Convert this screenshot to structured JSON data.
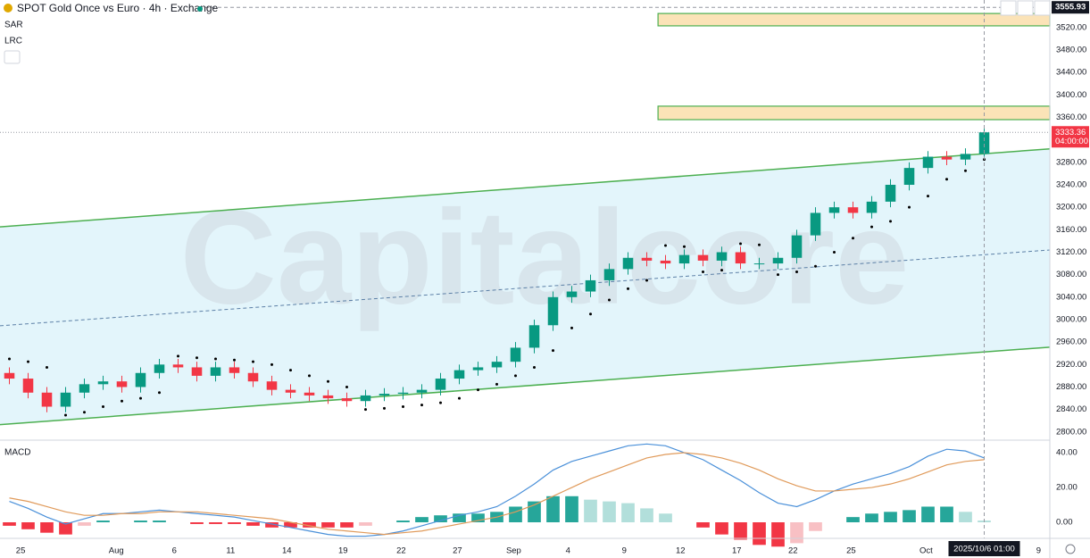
{
  "chart_data": [
    {
      "type": "candlestick",
      "title": "SPOT Gold Once vs Euro · 4h · Exchange",
      "indicators": [
        "SAR",
        "LRC"
      ],
      "watermark": "Capitalcore",
      "x": [
        0.5,
        1.5,
        2.5,
        3.5,
        4.5,
        5.5,
        6.5,
        7.5,
        8.5,
        9.5,
        10.5,
        11.5,
        12.5,
        13.5,
        14.5,
        15.5,
        16.5,
        17.5,
        18.5,
        19.5,
        20.5,
        21.5,
        22.5,
        23.5,
        24.5,
        25.5,
        26.5,
        27.5,
        28.5,
        29.5,
        30.5,
        31.5,
        32.5,
        33.5,
        34.5,
        35.5,
        36.5,
        37.5,
        38.5,
        39.5,
        40.5,
        41.5,
        42.5,
        43.5,
        44.5,
        45.5,
        46.5,
        47.5,
        48.5,
        49.5,
        50.5,
        51.5,
        52.5
      ],
      "open": [
        2905,
        2895,
        2870,
        2845,
        2870,
        2885,
        2890,
        2880,
        2905,
        2920,
        2915,
        2900,
        2915,
        2905,
        2890,
        2875,
        2870,
        2865,
        2860,
        2855,
        2865,
        2868,
        2870,
        2875,
        2895,
        2910,
        2915,
        2925,
        2950,
        2990,
        3040,
        3050,
        3070,
        3090,
        3110,
        3105,
        3100,
        3115,
        3105,
        3120,
        3100,
        3100,
        3110,
        3150,
        3190,
        3200,
        3190,
        3210,
        3240,
        3270,
        3290,
        3285,
        3295
      ],
      "high": [
        2915,
        2905,
        2880,
        2880,
        2895,
        2900,
        2900,
        2915,
        2930,
        2930,
        2925,
        2925,
        2925,
        2915,
        2900,
        2885,
        2880,
        2875,
        2870,
        2875,
        2878,
        2880,
        2885,
        2905,
        2920,
        2925,
        2935,
        2960,
        3000,
        3050,
        3060,
        3080,
        3100,
        3120,
        3120,
        3115,
        3125,
        3125,
        3130,
        3130,
        3110,
        3120,
        3160,
        3200,
        3210,
        3210,
        3220,
        3250,
        3280,
        3300,
        3300,
        3305,
        3340
      ],
      "low": [
        2885,
        2860,
        2835,
        2835,
        2860,
        2875,
        2870,
        2870,
        2895,
        2905,
        2890,
        2890,
        2895,
        2880,
        2865,
        2860,
        2855,
        2850,
        2845,
        2845,
        2855,
        2858,
        2860,
        2865,
        2885,
        2900,
        2905,
        2915,
        2940,
        2980,
        3030,
        3040,
        3060,
        3080,
        3095,
        3090,
        3090,
        3095,
        3095,
        3090,
        3090,
        3090,
        3100,
        3140,
        3180,
        3180,
        3180,
        3200,
        3230,
        3260,
        3275,
        3275,
        3285
      ],
      "close": [
        2895,
        2870,
        2845,
        2870,
        2885,
        2890,
        2880,
        2905,
        2920,
        2915,
        2900,
        2915,
        2905,
        2890,
        2875,
        2870,
        2865,
        2860,
        2855,
        2865,
        2868,
        2870,
        2875,
        2895,
        2910,
        2915,
        2925,
        2950,
        2990,
        3040,
        3050,
        3070,
        3090,
        3110,
        3105,
        3100,
        3115,
        3105,
        3120,
        3100,
        3100,
        3110,
        3150,
        3190,
        3200,
        3190,
        3210,
        3240,
        3270,
        3290,
        3285,
        3295,
        3333.36
      ],
      "sar": [
        2930,
        2925,
        2915,
        2830,
        2835,
        2845,
        2855,
        2860,
        2870,
        2935,
        2932,
        2930,
        2928,
        2925,
        2920,
        2910,
        2900,
        2890,
        2880,
        2840,
        2842,
        2845,
        2848,
        2852,
        2860,
        2875,
        2885,
        2900,
        2915,
        2945,
        2985,
        3010,
        3035,
        3055,
        3070,
        3132,
        3130,
        3085,
        3088,
        3135,
        3133,
        3080,
        3085,
        3095,
        3120,
        3145,
        3165,
        3175,
        3200,
        3220,
        3250,
        3265,
        3285
      ],
      "up_color": "#089981",
      "down_color": "#f23645",
      "sar_color": "#000000",
      "lrc": {
        "upper": [
          3165,
          3304
        ],
        "middle": [
          2989,
          3124
        ],
        "lower": [
          2813,
          2951
        ],
        "color": "#4caf50",
        "fill": "#e3f5fb"
      },
      "zones": [
        {
          "from": 35.1,
          "low": 3523,
          "high": 3545
        },
        {
          "from": 35.1,
          "low": 3356,
          "high": 3380
        }
      ],
      "zone_color": "#fbe3b7",
      "last_price": 3333.36,
      "last_price_label": "3333.36",
      "countdown": "04:00:00",
      "crosshair_price": 3555.93,
      "crosshair_label": "3555.93",
      "xlim": [
        0,
        56
      ],
      "ylim": [
        2787,
        3569
      ],
      "yticks": [
        {
          "value": 2800,
          "label": "2800.00"
        },
        {
          "value": 2840,
          "label": "2840.00"
        },
        {
          "value": 2880,
          "label": "2880.00"
        },
        {
          "value": 2920,
          "label": "2920.00"
        },
        {
          "value": 2960,
          "label": "2960.00"
        },
        {
          "value": 3000,
          "label": "3000.00"
        },
        {
          "value": 3040,
          "label": "3040.00"
        },
        {
          "value": 3080,
          "label": "3080.00"
        },
        {
          "value": 3120,
          "label": "3120.00"
        },
        {
          "value": 3160,
          "label": "3160.00"
        },
        {
          "value": 3200,
          "label": "3200.00"
        },
        {
          "value": 3240,
          "label": "3240.00"
        },
        {
          "value": 3280,
          "label": "3280.00"
        },
        {
          "value": 3320,
          "label": "3320.00"
        },
        {
          "value": 3360,
          "label": "3360.00"
        },
        {
          "value": 3400,
          "label": "3400.00"
        },
        {
          "value": 3440,
          "label": "3440.00"
        },
        {
          "value": 3480,
          "label": "3480.00"
        },
        {
          "value": 3520,
          "label": "3520.00"
        }
      ]
    },
    {
      "type": "macd",
      "title": "MACD",
      "x": [
        0.5,
        1.5,
        2.5,
        3.5,
        4.5,
        5.5,
        6.5,
        7.5,
        8.5,
        9.5,
        10.5,
        11.5,
        12.5,
        13.5,
        14.5,
        15.5,
        16.5,
        17.5,
        18.5,
        19.5,
        20.5,
        21.5,
        22.5,
        23.5,
        24.5,
        25.5,
        26.5,
        27.5,
        28.5,
        29.5,
        30.5,
        31.5,
        32.5,
        33.5,
        34.5,
        35.5,
        36.5,
        37.5,
        38.5,
        39.5,
        40.5,
        41.5,
        42.5,
        43.5,
        44.5,
        45.5,
        46.5,
        47.5,
        48.5,
        49.5,
        50.5,
        51.5,
        52.5
      ],
      "series": [
        {
          "name": "MACD",
          "color": "#4a90d9",
          "values": [
            12,
            8,
            3,
            -1,
            2,
            5,
            5,
            6,
            7,
            6,
            5,
            4,
            3,
            1,
            -1,
            -3,
            -5,
            -7,
            -8,
            -8,
            -7,
            -5,
            -2,
            1,
            4,
            6,
            9,
            15,
            22,
            30,
            35,
            38,
            41,
            44,
            45,
            44,
            40,
            36,
            30,
            24,
            17,
            11,
            9,
            13,
            18,
            22,
            25,
            28,
            32,
            38,
            42,
            41,
            37
          ]
        },
        {
          "name": "Signal",
          "color": "#e09a5a",
          "values": [
            14,
            12,
            9,
            6,
            4,
            4,
            5,
            5,
            6,
            6,
            6,
            5,
            4,
            3,
            2,
            0,
            -2,
            -4,
            -5,
            -6,
            -7,
            -6,
            -5,
            -3,
            -1,
            1,
            3,
            6,
            10,
            15,
            20,
            25,
            29,
            33,
            37,
            39,
            40,
            39,
            37,
            34,
            30,
            25,
            21,
            18,
            18,
            19,
            20,
            22,
            25,
            29,
            33,
            35,
            36
          ]
        }
      ],
      "histogram": [
        -2,
        -4,
        -6,
        -7,
        -2,
        1,
        0,
        1,
        1,
        0,
        -1,
        -1,
        -1,
        -2,
        -3,
        -3,
        -3,
        -3,
        -3,
        -2,
        0,
        1,
        3,
        4,
        5,
        5,
        6,
        9,
        12,
        15,
        15,
        13,
        12,
        11,
        8,
        5,
        0,
        -3,
        -7,
        -10,
        -13,
        -14,
        -12,
        -5,
        0,
        3,
        5,
        6,
        7,
        9,
        9,
        6,
        1
      ],
      "hist_colors": {
        "pos_up": "#26a69a",
        "pos_down": "#b2dfdb",
        "neg_down": "#f23645",
        "neg_up": "#f8c0c4"
      },
      "xlim": [
        0,
        56
      ],
      "ylim": [
        -7.7,
        46.2
      ],
      "yticks": [
        {
          "value": 0,
          "label": "0.00"
        },
        {
          "value": 20,
          "label": "20.00"
        },
        {
          "value": 40,
          "label": "40.00"
        }
      ],
      "xticks": [
        {
          "value": 1.1,
          "label": "25"
        },
        {
          "value": 6.2,
          "label": "Aug"
        },
        {
          "value": 9.3,
          "label": "6"
        },
        {
          "value": 12.3,
          "label": "11"
        },
        {
          "value": 15.3,
          "label": "14"
        },
        {
          "value": 18.3,
          "label": "19"
        },
        {
          "value": 21.4,
          "label": "22"
        },
        {
          "value": 24.4,
          "label": "27"
        },
        {
          "value": 27.4,
          "label": "Sep"
        },
        {
          "value": 30.3,
          "label": "4"
        },
        {
          "value": 33.3,
          "label": "9"
        },
        {
          "value": 36.3,
          "label": "12"
        },
        {
          "value": 39.3,
          "label": "17"
        },
        {
          "value": 42.3,
          "label": "22"
        },
        {
          "value": 45.4,
          "label": "25"
        },
        {
          "value": 49.4,
          "label": "Oct"
        },
        {
          "value": 55.4,
          "label": "9"
        }
      ],
      "current_x": {
        "value": 52.5,
        "label": "2025/10/6  01:00"
      }
    }
  ]
}
